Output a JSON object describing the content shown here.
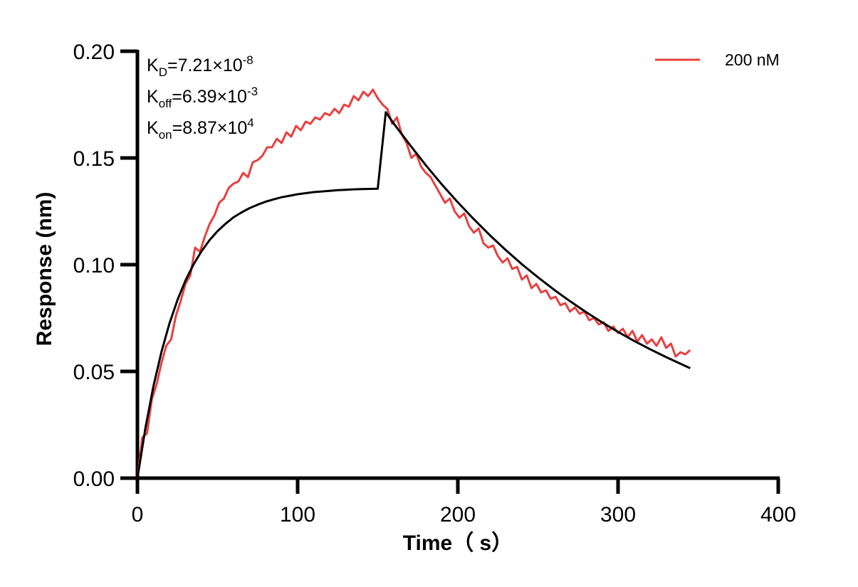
{
  "chart_data": {
    "type": "line",
    "title": "",
    "xlabel": "Time（ s）",
    "ylabel": "Response (nm)",
    "xlim": [
      0,
      400
    ],
    "ylim": [
      0,
      0.2
    ],
    "x_ticks": [
      0,
      100,
      200,
      300,
      400
    ],
    "x_tick_labels": [
      "0",
      "100",
      "200",
      "300",
      "400"
    ],
    "y_ticks": [
      0,
      0.05,
      0.1,
      0.15,
      0.2
    ],
    "y_tick_labels": [
      "0.00",
      "0.05",
      "0.10",
      "0.15",
      "0.20"
    ],
    "grid": false,
    "legend": {
      "position": "top-right",
      "entries": [
        "200 nM"
      ]
    },
    "annotations": [
      {
        "base": "K",
        "sub": "D",
        "mid": "=7.21×10",
        "sup": "-8"
      },
      {
        "base": "K",
        "sub": "off",
        "mid": "=6.39×10",
        "sup": "-3"
      },
      {
        "base": "K",
        "sub": "on",
        "mid": "=8.87×10",
        "sup": "4"
      }
    ],
    "colors": {
      "measured": "#e8403f",
      "fit": "#000000",
      "axis": "#000000"
    },
    "series": [
      {
        "name": "200 nM",
        "color": "#e8403f",
        "x": [
          0,
          3,
          6,
          9,
          12,
          15,
          18,
          21,
          24,
          27,
          30,
          33,
          36,
          39,
          42,
          45,
          48,
          51,
          54,
          57,
          60,
          63,
          66,
          69,
          72,
          75,
          78,
          81,
          84,
          87,
          90,
          93,
          96,
          99,
          102,
          105,
          108,
          111,
          114,
          117,
          120,
          123,
          126,
          129,
          132,
          135,
          138,
          141,
          144,
          147,
          150,
          153,
          156,
          159,
          162,
          165,
          168,
          171,
          174,
          177,
          180,
          183,
          186,
          189,
          192,
          195,
          198,
          201,
          204,
          207,
          210,
          213,
          216,
          219,
          222,
          225,
          228,
          231,
          234,
          237,
          240,
          243,
          246,
          249,
          252,
          255,
          258,
          261,
          264,
          267,
          270,
          273,
          276,
          279,
          282,
          285,
          288,
          291,
          294,
          297,
          300,
          303,
          306,
          309,
          312,
          315,
          318,
          321,
          324,
          327,
          330,
          333,
          336,
          339,
          342,
          345
        ],
        "y": [
          0.0,
          0.019,
          0.021,
          0.037,
          0.044,
          0.054,
          0.062,
          0.065,
          0.076,
          0.083,
          0.091,
          0.095,
          0.108,
          0.106,
          0.113,
          0.119,
          0.123,
          0.129,
          0.131,
          0.136,
          0.138,
          0.139,
          0.143,
          0.141,
          0.148,
          0.149,
          0.151,
          0.155,
          0.155,
          0.159,
          0.157,
          0.162,
          0.16,
          0.165,
          0.163,
          0.167,
          0.166,
          0.169,
          0.168,
          0.171,
          0.17,
          0.173,
          0.171,
          0.175,
          0.174,
          0.179,
          0.177,
          0.181,
          0.179,
          0.182,
          0.178,
          0.175,
          0.173,
          0.166,
          0.169,
          0.161,
          0.157,
          0.15,
          0.152,
          0.146,
          0.143,
          0.141,
          0.137,
          0.133,
          0.129,
          0.131,
          0.125,
          0.122,
          0.124,
          0.118,
          0.115,
          0.117,
          0.11,
          0.108,
          0.109,
          0.104,
          0.101,
          0.103,
          0.098,
          0.099,
          0.093,
          0.095,
          0.089,
          0.091,
          0.087,
          0.088,
          0.084,
          0.085,
          0.081,
          0.082,
          0.078,
          0.08,
          0.077,
          0.078,
          0.074,
          0.075,
          0.072,
          0.073,
          0.069,
          0.071,
          0.068,
          0.07,
          0.066,
          0.069,
          0.064,
          0.067,
          0.063,
          0.065,
          0.062,
          0.066,
          0.061,
          0.063,
          0.057,
          0.059,
          0.058,
          0.06
        ]
      },
      {
        "name": "",
        "color": "#000000",
        "x": [
          0,
          5,
          10,
          15,
          20,
          25,
          30,
          35,
          40,
          45,
          50,
          55,
          60,
          65,
          70,
          75,
          80,
          85,
          90,
          95,
          100,
          105,
          110,
          115,
          120,
          125,
          130,
          135,
          140,
          145,
          150,
          155,
          160,
          170,
          180,
          190,
          200,
          210,
          220,
          230,
          240,
          250,
          260,
          270,
          280,
          290,
          300,
          310,
          320,
          330,
          345
        ],
        "y": [
          0.0,
          0.0236,
          0.0431,
          0.0592,
          0.0725,
          0.0835,
          0.0926,
          0.1001,
          0.1063,
          0.1115,
          0.1157,
          0.1192,
          0.1222,
          0.1245,
          0.1265,
          0.1281,
          0.1295,
          0.1306,
          0.1316,
          0.1323,
          0.133,
          0.1335,
          0.134,
          0.1343,
          0.1346,
          0.1349,
          0.1351,
          0.1353,
          0.1354,
          0.1355,
          0.1356,
          0.1714,
          0.1661,
          0.1562,
          0.1466,
          0.1376,
          0.1292,
          0.1213,
          0.1138,
          0.1068,
          0.1002,
          0.0941,
          0.0883,
          0.0829,
          0.0778,
          0.073,
          0.0685,
          0.0643,
          0.0604,
          0.0567,
          0.0515
        ]
      }
    ]
  }
}
